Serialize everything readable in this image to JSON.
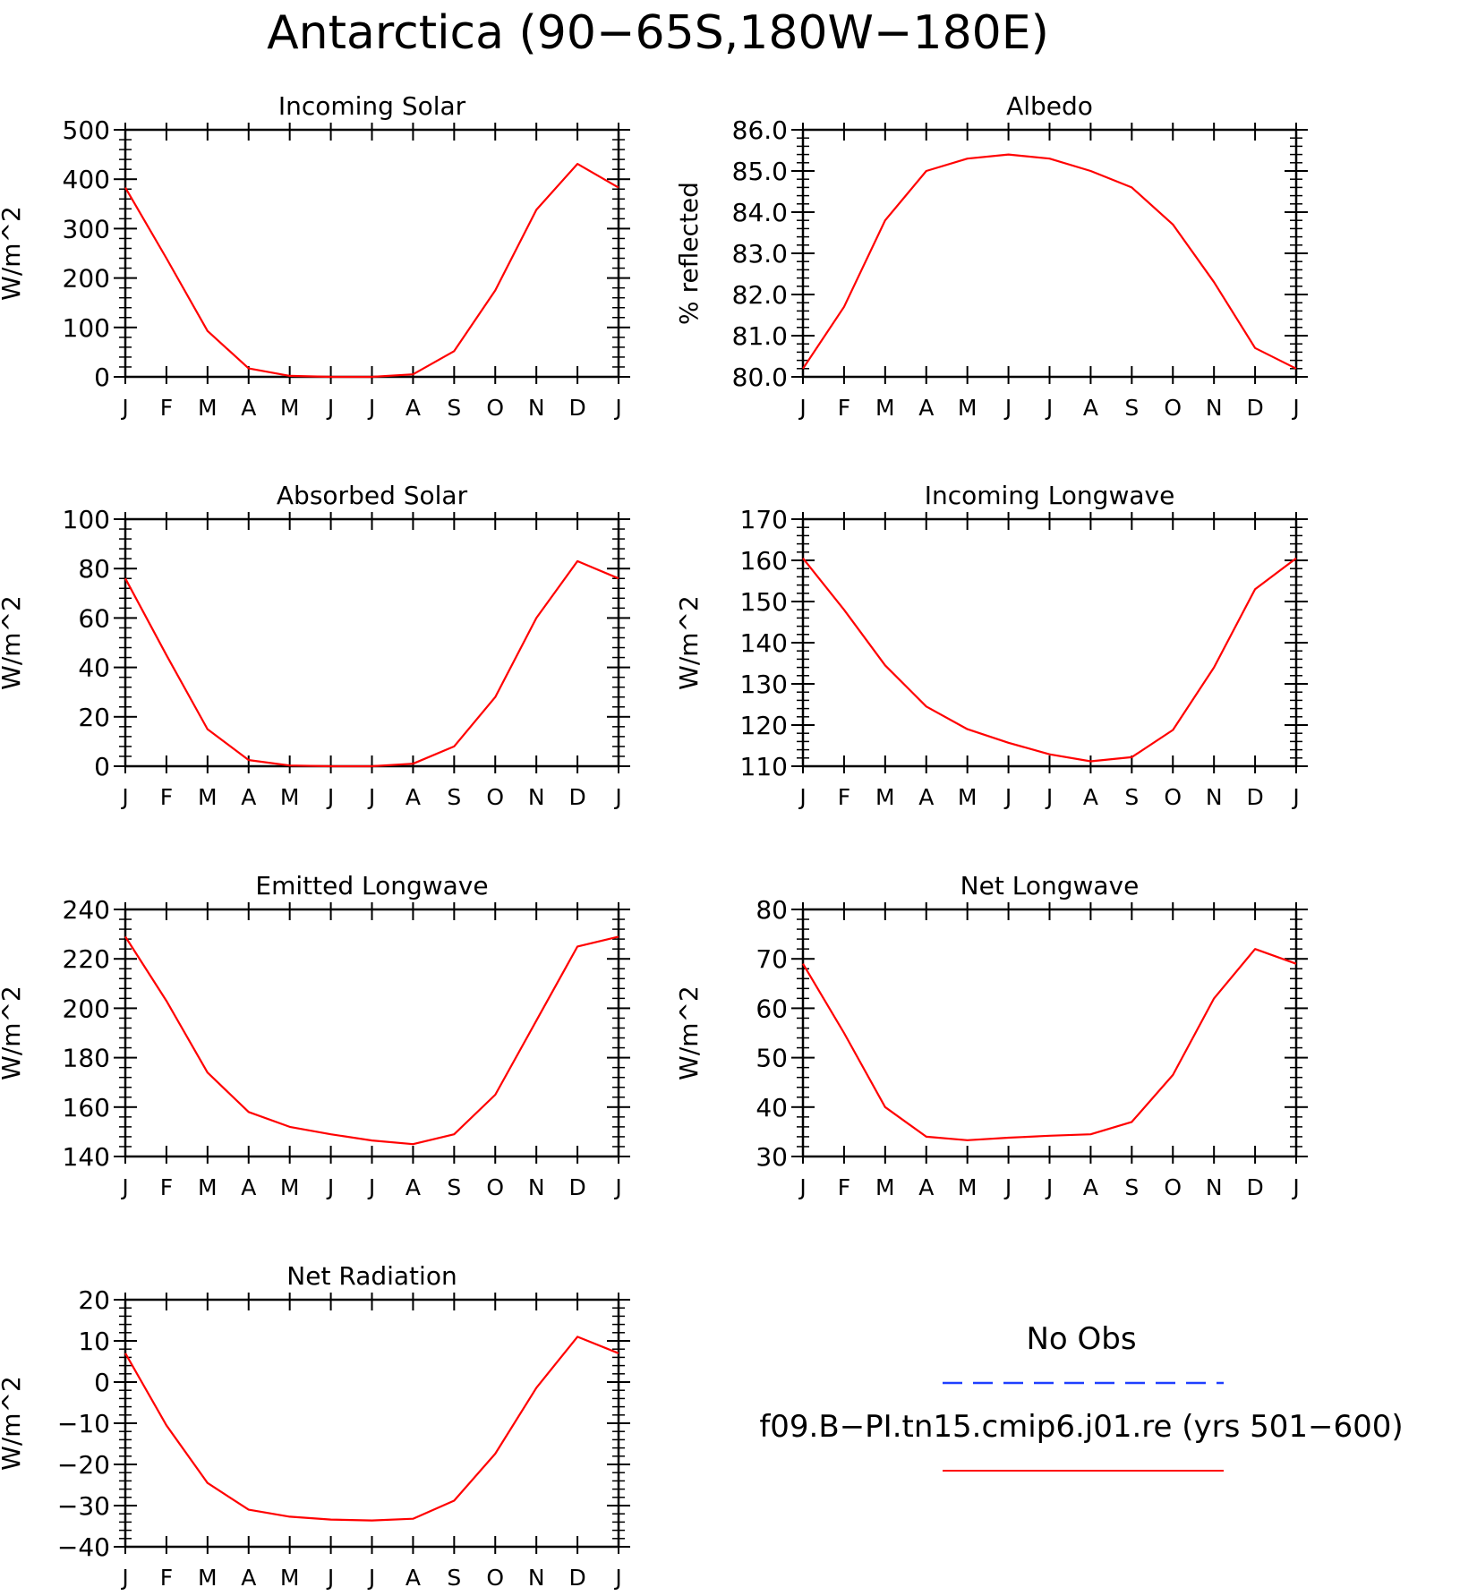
{
  "figure_title": "Antarctica (90−65S,180W−180E)",
  "legend": {
    "entries": [
      {
        "label": "No Obs",
        "color": "#1f3fff",
        "dash": true
      },
      {
        "label": "f09.B−PI.tn15.cmip6.j01.re (yrs 501−600)",
        "color": "#ff0000",
        "dash": false
      }
    ]
  },
  "colors": {
    "model": "#ff0000",
    "obs": "#1f3fff",
    "axis": "#000000"
  },
  "chart_data": [
    {
      "type": "line",
      "title": "Incoming Solar",
      "ylabel": "W/m^2",
      "xlabel": "",
      "x": [
        "J",
        "F",
        "M",
        "A",
        "M",
        "J",
        "J",
        "A",
        "S",
        "O",
        "N",
        "D",
        "J"
      ],
      "ylim": [
        0,
        500
      ],
      "yticks": [
        0,
        100,
        200,
        300,
        400,
        500
      ],
      "ytick_labels": [
        "0",
        "100",
        "200",
        "300",
        "400",
        "500"
      ],
      "series": [
        {
          "name": "f09.B−PI.tn15.cmip6.j01.re (yrs 501−600)",
          "values": [
            383,
            240,
            93,
            17,
            2,
            0,
            0,
            5,
            52,
            175,
            338,
            431,
            383
          ]
        }
      ]
    },
    {
      "type": "line",
      "title": "Albedo",
      "ylabel": "% reflected",
      "xlabel": "",
      "x": [
        "J",
        "F",
        "M",
        "A",
        "M",
        "J",
        "J",
        "A",
        "S",
        "O",
        "N",
        "D",
        "J"
      ],
      "ylim": [
        80.0,
        86.0
      ],
      "yticks": [
        80,
        81,
        82,
        83,
        84,
        85,
        86
      ],
      "ytick_labels": [
        "80.0",
        "81.0",
        "82.0",
        "83.0",
        "84.0",
        "85.0",
        "86.0"
      ],
      "series": [
        {
          "name": "f09.B−PI.tn15.cmip6.j01.re (yrs 501−600)",
          "values": [
            80.2,
            81.7,
            83.8,
            85.0,
            85.3,
            85.4,
            85.3,
            85.0,
            84.6,
            83.7,
            82.3,
            80.7,
            80.2
          ]
        }
      ]
    },
    {
      "type": "line",
      "title": "Absorbed Solar",
      "ylabel": "W/m^2",
      "xlabel": "",
      "x": [
        "J",
        "F",
        "M",
        "A",
        "M",
        "J",
        "J",
        "A",
        "S",
        "O",
        "N",
        "D",
        "J"
      ],
      "ylim": [
        0,
        100
      ],
      "yticks": [
        0,
        20,
        40,
        60,
        80,
        100
      ],
      "ytick_labels": [
        "0",
        "20",
        "40",
        "60",
        "80",
        "100"
      ],
      "series": [
        {
          "name": "f09.B−PI.tn15.cmip6.j01.re (yrs 501−600)",
          "values": [
            76,
            45,
            15,
            2.5,
            0.3,
            0,
            0,
            1,
            8,
            28,
            60,
            83,
            76
          ]
        }
      ]
    },
    {
      "type": "line",
      "title": "Incoming Longwave",
      "ylabel": "W/m^2",
      "xlabel": "",
      "x": [
        "J",
        "F",
        "M",
        "A",
        "M",
        "J",
        "J",
        "A",
        "S",
        "O",
        "N",
        "D",
        "J"
      ],
      "ylim": [
        110,
        170
      ],
      "yticks": [
        110,
        120,
        130,
        140,
        150,
        160,
        170
      ],
      "ytick_labels": [
        "110",
        "120",
        "130",
        "140",
        "150",
        "160",
        "170"
      ],
      "series": [
        {
          "name": "f09.B−PI.tn15.cmip6.j01.re (yrs 501−600)",
          "values": [
            160.5,
            148,
            134.5,
            124.5,
            119,
            115.7,
            112.9,
            111.2,
            112.2,
            118.8,
            134,
            153,
            160.5
          ]
        }
      ]
    },
    {
      "type": "line",
      "title": "Emitted Longwave",
      "ylabel": "W/m^2",
      "xlabel": "",
      "x": [
        "J",
        "F",
        "M",
        "A",
        "M",
        "J",
        "J",
        "A",
        "S",
        "O",
        "N",
        "D",
        "J"
      ],
      "ylim": [
        140,
        240
      ],
      "yticks": [
        140,
        160,
        180,
        200,
        220,
        240
      ],
      "ytick_labels": [
        "140",
        "160",
        "180",
        "200",
        "220",
        "240"
      ],
      "series": [
        {
          "name": "f09.B−PI.tn15.cmip6.j01.re (yrs 501−600)",
          "values": [
            229,
            203,
            174,
            158,
            152,
            149,
            146.5,
            145,
            149,
            165,
            195,
            225,
            229
          ]
        }
      ]
    },
    {
      "type": "line",
      "title": "Net Longwave",
      "ylabel": "W/m^2",
      "xlabel": "",
      "x": [
        "J",
        "F",
        "M",
        "A",
        "M",
        "J",
        "J",
        "A",
        "S",
        "O",
        "N",
        "D",
        "J"
      ],
      "ylim": [
        30,
        80
      ],
      "yticks": [
        30,
        40,
        50,
        60,
        70,
        80
      ],
      "ytick_labels": [
        "30",
        "40",
        "50",
        "60",
        "70",
        "80"
      ],
      "series": [
        {
          "name": "f09.B−PI.tn15.cmip6.j01.re (yrs 501−600)",
          "values": [
            69,
            55,
            40,
            34,
            33.3,
            33.8,
            34.2,
            34.5,
            37,
            46.5,
            62,
            72,
            69
          ]
        }
      ]
    },
    {
      "type": "line",
      "title": "Net Radiation",
      "ylabel": "W/m^2",
      "xlabel": "",
      "x": [
        "J",
        "F",
        "M",
        "A",
        "M",
        "J",
        "J",
        "A",
        "S",
        "O",
        "N",
        "D",
        "J"
      ],
      "ylim": [
        -40,
        20
      ],
      "yticks": [
        -40,
        -30,
        -20,
        -10,
        0,
        10,
        20
      ],
      "ytick_labels": [
        "−40",
        "−30",
        "−20",
        "−10",
        "0",
        "10",
        "20"
      ],
      "series": [
        {
          "name": "f09.B−PI.tn15.cmip6.j01.re (yrs 501−600)",
          "values": [
            7,
            -10.5,
            -24.5,
            -31,
            -32.7,
            -33.4,
            -33.6,
            -33.2,
            -28.8,
            -17.4,
            -1.4,
            11,
            7
          ]
        }
      ]
    }
  ]
}
